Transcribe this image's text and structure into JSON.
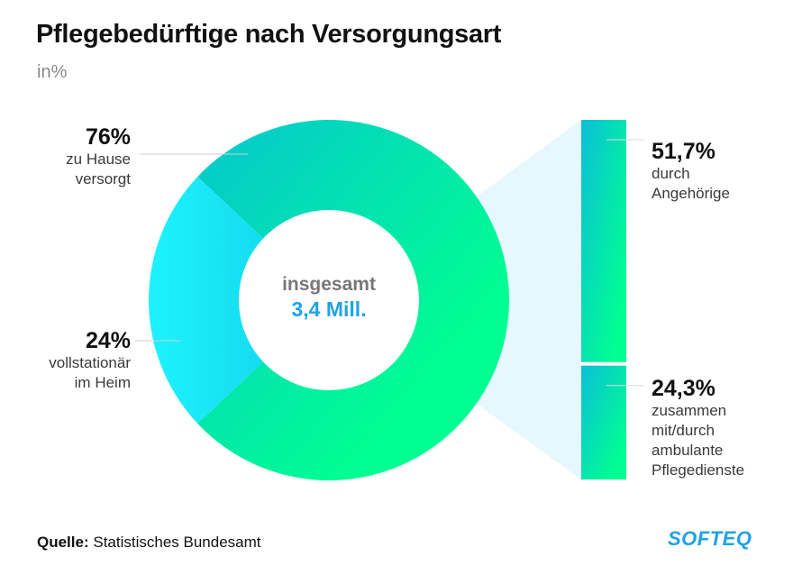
{
  "title": "Pflegebedürftige nach Versorgungsart",
  "subtitle": "in%",
  "center": {
    "label": "insgesamt",
    "value": "3,4 Mill."
  },
  "source": {
    "prefix": "Quelle:",
    "text": "Statistisches Bundesamt"
  },
  "logo": "SOFTEQ",
  "colors": {
    "home_start": "#06c6cf",
    "home_end": "#00ff90",
    "facility_start": "#1ef2ff",
    "facility_end": "#14dcf0",
    "bar_start": "#0bbfd8",
    "bar_end": "#00ff90",
    "connector": "#e6f7fd",
    "accent": "#1fa2e8"
  },
  "chart_data": {
    "type": "pie",
    "title": "Pflegebedürftige nach Versorgungsart",
    "subtitle": "in%",
    "total_label": "insgesamt",
    "total_value": "3,4 Mill.",
    "slices": [
      {
        "name": "zu Hause versorgt",
        "value": 76,
        "label": "76%",
        "desc": [
          "zu Hause",
          "versorgt"
        ]
      },
      {
        "name": "vollstationär im Heim",
        "value": 24,
        "label": "24%",
        "desc": [
          "vollstationär",
          "im Heim"
        ]
      }
    ],
    "breakdown": {
      "of": "zu Hause versorgt",
      "type": "stacked-bar",
      "segments": [
        {
          "name": "durch Angehörige",
          "value": 51.7,
          "label": "51,7%",
          "desc": [
            "durch",
            "Angehörige"
          ]
        },
        {
          "name": "zusammen mit/durch ambulante Pflegedienste",
          "value": 24.3,
          "label": "24,3%",
          "desc": [
            "zusammen",
            "mit/durch",
            "ambulante",
            "Pflegedienste"
          ]
        }
      ]
    },
    "source": "Statistisches Bundesamt"
  }
}
